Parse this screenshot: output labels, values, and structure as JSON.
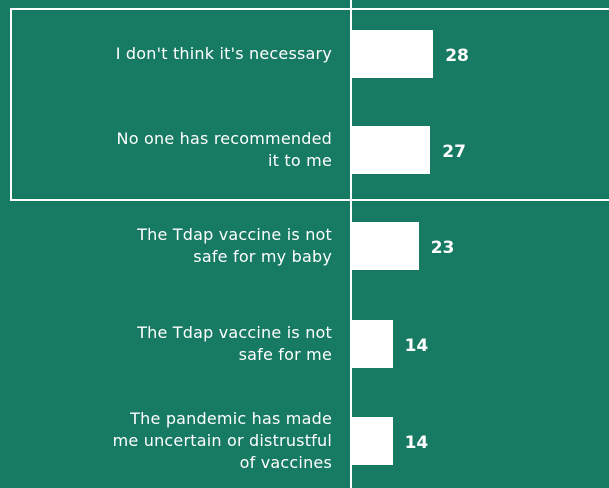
{
  "chart_data": {
    "type": "bar",
    "orientation": "horizontal",
    "categories": [
      "I don't think it's necessary",
      "No one has recommended\nit to me",
      "The Tdap vaccine is not\nsafe for my baby",
      "The Tdap vaccine is not\nsafe for me",
      "The pandemic has made\nme uncertain or distrustful\nof vaccines"
    ],
    "values": [
      28,
      27,
      23,
      14,
      14
    ],
    "color": "#ffffff"
  }
}
